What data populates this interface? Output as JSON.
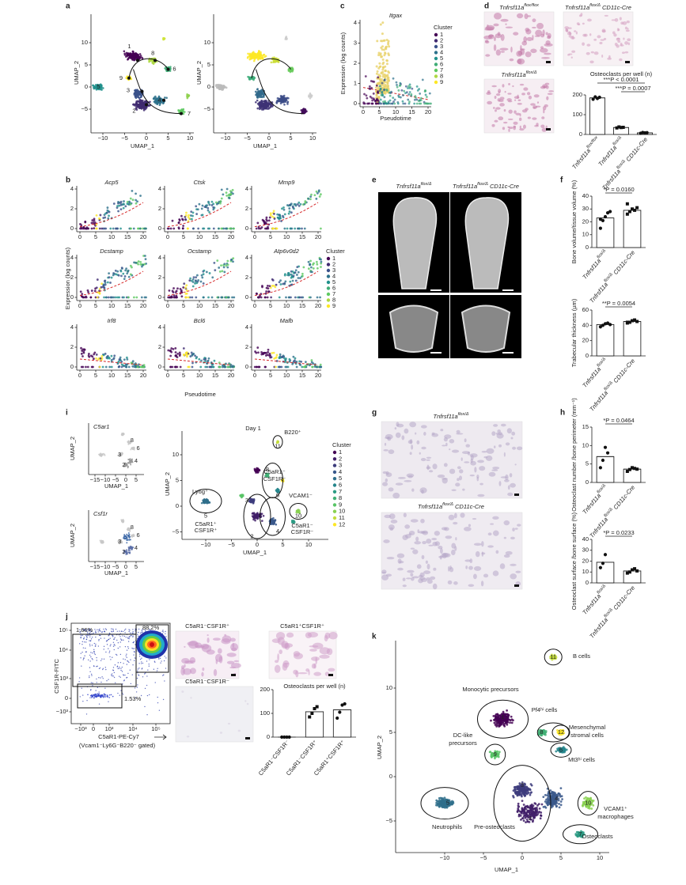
{
  "figure": {
    "a": {
      "letter": "a",
      "xlabel": "UMAP_1",
      "ylabel": "UMAP_2",
      "xticks": [
        "−10",
        "−5",
        "0",
        "5",
        "10"
      ],
      "yticks": [
        "10",
        "5",
        "0",
        "−5"
      ],
      "clusters": [
        "1",
        "2",
        "3",
        "4",
        "5",
        "6",
        "7",
        "8",
        "9"
      ]
    },
    "b": {
      "letter": "b",
      "genes": [
        "Acp5",
        "Ctsk",
        "Mmp9",
        "Dcstamp",
        "Ocstamp",
        "Atp6v0d2",
        "Irf8",
        "Bcl6",
        "Mafb"
      ],
      "ylabel": "Expression (log counts)",
      "xlabel": "Pseudotime",
      "xticks": [
        "0",
        "5",
        "10",
        "15",
        "20"
      ],
      "yticks": [
        "0",
        "2",
        "4"
      ],
      "legend_title": "Cluster",
      "legend": [
        "1",
        "2",
        "3",
        "4",
        "5",
        "6",
        "7",
        "8",
        "9"
      ]
    },
    "c": {
      "letter": "c",
      "gene": "Itgax",
      "ylabel": "Expression (log counts)",
      "xlabel": "Pseudotime",
      "xticks": [
        "0",
        "5",
        "10",
        "15",
        "20"
      ],
      "yticks": [
        "0",
        "1",
        "2",
        "3",
        "4"
      ],
      "legend_title": "Cluster",
      "legend": [
        "1",
        "2",
        "3",
        "4",
        "5",
        "6",
        "7",
        "8",
        "9"
      ]
    },
    "d": {
      "letter": "d",
      "images": [
        {
          "text": "Tnfrsf11a",
          "sup": "flox/flox"
        },
        {
          "text": "Tnfrsf11a",
          "sup": "flox/Δ",
          "suffix": " CD11c-Cre"
        },
        {
          "text": "Tnfrsf11a",
          "sup": "flox/Δ"
        }
      ],
      "chart": {
        "title": "Osteoclasts per well (n)",
        "categories": [
          {
            "text": "Tnfrsf11a",
            "sup": "flox/flox"
          },
          {
            "text": "Tnfrsf11a",
            "sup": "flox/Δ"
          },
          {
            "text": "Tnfrsf11a",
            "sup": "flox/Δ",
            "suffix": " CD11c-Cre"
          }
        ],
        "values": [
          185,
          35,
          8
        ],
        "points": [
          [
            178,
            190,
            182,
            188
          ],
          [
            33,
            38,
            35,
            36
          ],
          [
            6,
            10,
            8,
            9
          ]
        ],
        "ylim": [
          0,
          200
        ],
        "yticks": [
          0,
          100,
          200
        ],
        "pvalues": [
          "***P < 0.0001",
          "***P = 0.0007"
        ]
      }
    },
    "e": {
      "letter": "e",
      "images": [
        {
          "text": "Tnfrsf11a",
          "sup": "flox/Δ"
        },
        {
          "text": "Tnfrsf11a",
          "sup": "flox/Δ",
          "suffix": " CD11c-Cre"
        }
      ]
    },
    "f": {
      "letter": "f",
      "charts": [
        {
          "ylabel": "Bone volume/tissue volume (%)",
          "categories": [
            {
              "text": "Tnfrsf11a",
              "sup": "flox/Δ"
            },
            {
              "text": "Tnfrsf11a",
              "sup": "flox/Δ",
              "suffix": " CD11c-Cre"
            }
          ],
          "values": [
            23,
            29
          ],
          "points": [
            [
              15,
              21,
              24,
              27,
              28,
              22
            ],
            [
              26,
              28,
              30,
              29,
              31,
              34
            ]
          ],
          "ylim": [
            0,
            40
          ],
          "yticks": [
            0,
            10,
            20,
            30,
            40
          ],
          "pvalues": [
            "*P = 0.0160"
          ]
        },
        {
          "ylabel": "Trabecular thickness (µm)",
          "categories": [
            {
              "text": "Tnfrsf11a",
              "sup": "flox/Δ"
            },
            {
              "text": "Tnfrsf11a",
              "sup": "flox/Δ",
              "suffix": " CD11c-Cre"
            }
          ],
          "values": [
            41,
            45
          ],
          "points": [
            [
              38,
              40,
              42,
              43,
              41
            ],
            [
              43,
              44,
              46,
              47,
              45,
              44
            ]
          ],
          "ylim": [
            0,
            60
          ],
          "yticks": [
            0,
            20,
            40,
            60
          ],
          "pvalues": [
            "**P = 0.0054"
          ]
        }
      ]
    },
    "g": {
      "letter": "g",
      "images": [
        {
          "text": "Tnfrsf11a",
          "sup": "flox/Δ"
        },
        {
          "text": "Tnfrsf11a",
          "sup": "flox/Δ",
          "suffix": " CD11c-Cre"
        }
      ]
    },
    "h": {
      "letter": "h",
      "charts": [
        {
          "ylabel": "Osteoclast number /bone perimeter (mm⁻¹)",
          "categories": [
            {
              "text": "Tnfrsf11a",
              "sup": "flox/Δ"
            },
            {
              "text": "Tnfrsf11a",
              "sup": "flox/Δ",
              "suffix": " CD11c-Cre"
            }
          ],
          "values": [
            7,
            3.6
          ],
          "points": [
            [
              4,
              6,
              9.5,
              8
            ],
            [
              3,
              3.5,
              4,
              3.8,
              3.6
            ]
          ],
          "ylim": [
            0,
            15
          ],
          "yticks": [
            0,
            5,
            10,
            15
          ],
          "pvalues": [
            "*P = 0.0464"
          ]
        },
        {
          "ylabel": "Osteoclast surface /bone surface (%)",
          "categories": [
            {
              "text": "Tnfrsf11a",
              "sup": "flox/Δ"
            },
            {
              "text": "Tnfrsf11a",
              "sup": "flox/Δ",
              "suffix": " CD11c-Cre"
            }
          ],
          "values": [
            19,
            11
          ],
          "points": [
            [
              14,
              18,
              26
            ],
            [
              9,
              10,
              12,
              13,
              11
            ]
          ],
          "ylim": [
            0,
            40
          ],
          "yticks": [
            0,
            10,
            20,
            30,
            40
          ],
          "pvalues": [
            "*P = 0.0233"
          ]
        }
      ]
    },
    "i": {
      "letter": "i",
      "small": [
        {
          "gene": "C5ar1"
        },
        {
          "gene": "Csf1r"
        }
      ],
      "small_clusters": [
        "8",
        "6",
        "3",
        "2",
        "4"
      ],
      "small_xticks": [
        "−15",
        "−10",
        "−5",
        "0",
        "5"
      ],
      "xlabel": "UMAP_1",
      "ylabel": "UMAP_2",
      "title": "Day 1",
      "xticks": [
        "−10",
        "−5",
        "0",
        "5",
        "10"
      ],
      "yticks": [
        "10",
        "5",
        "0",
        "−5"
      ],
      "legend_title": "Cluster",
      "clusters": [
        "1",
        "2",
        "3",
        "4",
        "5",
        "6",
        "7",
        "8",
        "9",
        "10",
        "11",
        "12"
      ],
      "annotations": [
        "B220⁺",
        "Ly6g⁺",
        "C5aR1⁻",
        "CSF1R⁻",
        "VCAM1⁻",
        "C5aR1⁺",
        "CSF1R⁺",
        "C5aR1⁻",
        "CSF1R⁻"
      ]
    },
    "j": {
      "letter": "j",
      "ylabel": "CSF1R-FITC",
      "xlabel": "C5aR1-PE-Cy7",
      "gating": "(Vcam1⁻Ly6G⁻B220⁻ gated)",
      "gates": [
        "1.66%",
        "88.2%",
        "1.53%"
      ],
      "yticks": [
        "10⁵",
        "10⁴",
        "10³",
        "0",
        "−10³"
      ],
      "xticks": [
        "−10³",
        "0",
        "10³",
        "10⁴",
        "10⁵"
      ],
      "images": [
        "C5aR1⁻CSF1R⁺",
        "C5aR1⁺CSF1R⁺",
        "C5aR1⁻CSF1R⁻"
      ],
      "chart": {
        "title": "Osteoclasts per well (n)",
        "categories": [
          "C5aR1⁻CSF1R⁻",
          "C5aR1⁻CSF1R⁺",
          "C5aR1⁺CSF1R⁺"
        ],
        "values": [
          0,
          107,
          115
        ],
        "points": [
          [
            0,
            0,
            0,
            0
          ],
          [
            85,
            100,
            120,
            128
          ],
          [
            80,
            105,
            135,
            140
          ]
        ],
        "ylim": [
          0,
          200
        ],
        "yticks": [
          0,
          100,
          200
        ],
        "pvalues": []
      }
    },
    "k": {
      "letter": "k",
      "xlabel": "UMAP_1",
      "ylabel": "UMAP_2",
      "xticks": [
        "−10",
        "−5",
        "0",
        "5",
        "10"
      ],
      "yticks": [
        "10",
        "5",
        "0",
        "−5"
      ],
      "clusters": [
        "1",
        "2",
        "3",
        "4",
        "5",
        "6",
        "7",
        "8",
        "9",
        "10",
        "11",
        "12"
      ],
      "annotations": [
        "B cells",
        "Monocytic precursors",
        "Pf4ʰⁱ cells",
        "Mesenchymal",
        "stromal cells",
        "DC-like",
        "precursors",
        "Mt3ʰⁱ cells",
        "Neutrophils",
        "VCAM1⁺",
        "macrophages",
        "Pre-osteoclasts",
        "Osteoclasts"
      ]
    }
  }
}
